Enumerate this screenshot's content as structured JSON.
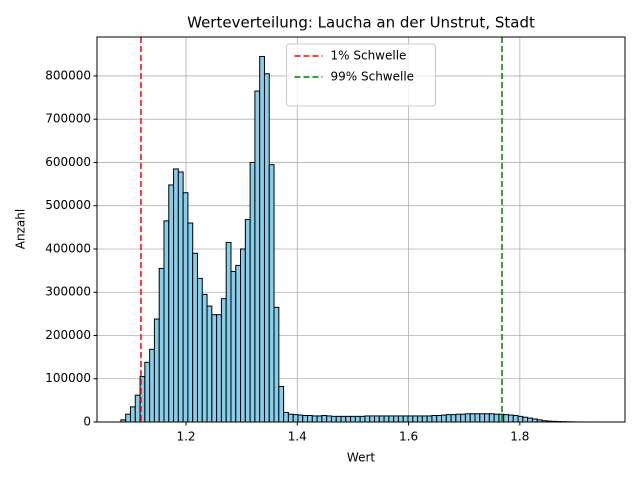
{
  "chart_data": {
    "type": "histogram",
    "title": "Werteverteilung: Laucha an der Unstrut, Stadt",
    "xlabel": "Wert",
    "ylabel": "Anzahl",
    "bins": [
      1.083,
      1.0916,
      1.1002,
      1.1088,
      1.1174,
      1.126,
      1.1346,
      1.1432,
      1.1518,
      1.1604,
      1.169,
      1.1776,
      1.1862,
      1.1948,
      1.2034,
      1.212,
      1.2206,
      1.2292,
      1.2378,
      1.2464,
      1.255,
      1.2636,
      1.2722,
      1.2808,
      1.2894,
      1.298,
      1.3066,
      1.3152,
      1.3238,
      1.3324,
      1.341,
      1.3496,
      1.3582,
      1.3668,
      1.3754,
      1.384,
      1.3926,
      1.4012,
      1.4098,
      1.4184,
      1.427,
      1.4356,
      1.4442,
      1.4528,
      1.4614,
      1.47,
      1.4786,
      1.4872,
      1.4958,
      1.5044,
      1.513,
      1.5216,
      1.5302,
      1.5388,
      1.5474,
      1.556,
      1.5646,
      1.5732,
      1.5818,
      1.5904,
      1.599,
      1.6076,
      1.6162,
      1.6248,
      1.6334,
      1.642,
      1.6506,
      1.6592,
      1.6678,
      1.6764,
      1.685,
      1.6936,
      1.7022,
      1.7108,
      1.7194,
      1.728,
      1.7366,
      1.7452,
      1.7538,
      1.7624,
      1.771,
      1.7796,
      1.7882,
      1.7968,
      1.8054,
      1.814,
      1.8226,
      1.8312,
      1.8398,
      1.8484,
      1.857,
      1.8656,
      1.8742,
      1.8828,
      1.8914,
      1.9,
      1.9086,
      1.9172,
      1.9258,
      1.9344,
      1.943
    ],
    "values": [
      5000,
      18000,
      35000,
      62000,
      105000,
      138000,
      168000,
      238000,
      355000,
      465000,
      548000,
      585000,
      578000,
      530000,
      460000,
      390000,
      332000,
      295000,
      268000,
      248000,
      248000,
      285000,
      415000,
      348000,
      362000,
      400000,
      468000,
      600000,
      765000,
      845000,
      805000,
      595000,
      265000,
      82000,
      22000,
      18000,
      17000,
      16000,
      15000,
      15000,
      14000,
      14000,
      15000,
      14000,
      13000,
      13000,
      13000,
      13000,
      13000,
      13000,
      13000,
      14000,
      14000,
      14000,
      14000,
      14000,
      14000,
      14000,
      14000,
      14000,
      14000,
      14000,
      14000,
      14000,
      14000,
      15000,
      15000,
      16000,
      17000,
      17000,
      18000,
      18000,
      19000,
      19000,
      19000,
      19000,
      19000,
      19000,
      18000,
      18000,
      17000,
      16000,
      15000,
      13000,
      11000,
      9000,
      7000,
      5000,
      3000,
      2000,
      1500,
      1000,
      800,
      500,
      300,
      150,
      100,
      50,
      30,
      20
    ],
    "color": "#87ceeb",
    "edgecolor": "#000000",
    "lines": [
      {
        "name": "1% Schwelle",
        "color": "#ff0000",
        "x": 1.119
      },
      {
        "name": "99% Schwelle",
        "color": "#008000",
        "x": 1.768
      }
    ],
    "xlim": [
      1.04,
      1.989
    ],
    "ylim": [
      0,
      890000
    ],
    "xticks": [
      1.2,
      1.4,
      1.6,
      1.8
    ],
    "yticks": [
      0,
      100000,
      200000,
      300000,
      400000,
      500000,
      600000,
      700000,
      800000
    ],
    "grid": true,
    "legend": "upper center"
  }
}
